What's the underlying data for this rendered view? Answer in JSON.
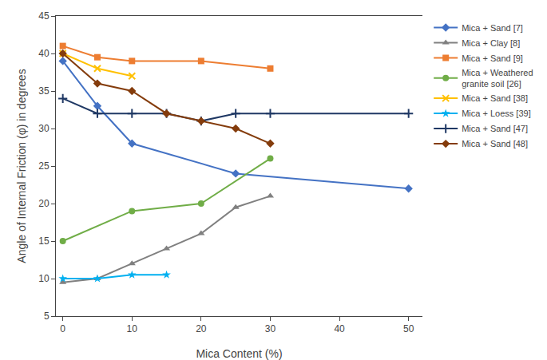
{
  "chart_data": {
    "type": "line",
    "x_label": "Mica Content (%)",
    "y_label": "Angle of Internal Friction (φ) in degrees",
    "xlim": [
      -1,
      52
    ],
    "ylim": [
      5,
      45
    ],
    "xticks": [
      0,
      10,
      20,
      30,
      40,
      50
    ],
    "yticks": [
      5,
      10,
      15,
      20,
      25,
      30,
      35,
      40,
      45
    ],
    "grid": false,
    "legend": "right",
    "series": [
      {
        "name": "Mica + Sand [7]",
        "color": "#4472C4",
        "marker": "diamond",
        "line_style": "solid",
        "x": [
          0,
          5,
          10,
          25,
          50
        ],
        "values": [
          39,
          33,
          28,
          24,
          22
        ]
      },
      {
        "name": "Mica + Clay [8]",
        "color": "#808080",
        "marker": "triangle-up",
        "line_style": "solid",
        "x": [
          0,
          5,
          10,
          15,
          20,
          25,
          30
        ],
        "values": [
          9.5,
          10,
          12,
          14,
          16,
          19.5,
          21
        ]
      },
      {
        "name": "Mica + Sand [9]",
        "color": "#ED7D31",
        "marker": "square",
        "line_style": "solid",
        "x": [
          0,
          5,
          10,
          20,
          30
        ],
        "values": [
          41,
          39.5,
          39,
          39,
          38
        ]
      },
      {
        "name": "Mica + Weathered\ngranite soil [26]",
        "color": "#70AD47",
        "marker": "circle",
        "line_style": "solid",
        "x": [
          0,
          10,
          20,
          30
        ],
        "values": [
          15,
          19,
          20,
          26
        ]
      },
      {
        "name": "Mica + Sand [38]",
        "color": "#FFC000",
        "marker": "x",
        "line_style": "solid",
        "x": [
          0,
          5,
          10
        ],
        "values": [
          40,
          38,
          37
        ]
      },
      {
        "name": "Mica + Loess [39]",
        "color": "#00B0F0",
        "marker": "star",
        "line_style": "solid",
        "x": [
          0,
          5,
          10,
          15
        ],
        "values": [
          10,
          10,
          10.5,
          10.5
        ]
      },
      {
        "name": "Mica + Sand [47]",
        "color": "#1F3864",
        "marker": "plus",
        "line_style": "solid",
        "x": [
          0,
          5,
          10,
          15,
          20,
          25,
          30,
          50
        ],
        "values": [
          34,
          32,
          32,
          32,
          31,
          32,
          32,
          32
        ]
      },
      {
        "name": "Mica + Sand [48]",
        "color": "#843C0C",
        "marker": "diamond",
        "line_style": "solid",
        "x": [
          0,
          5,
          10,
          15,
          20,
          25,
          30
        ],
        "values": [
          40,
          36,
          35,
          32,
          31,
          30,
          28
        ]
      }
    ]
  }
}
